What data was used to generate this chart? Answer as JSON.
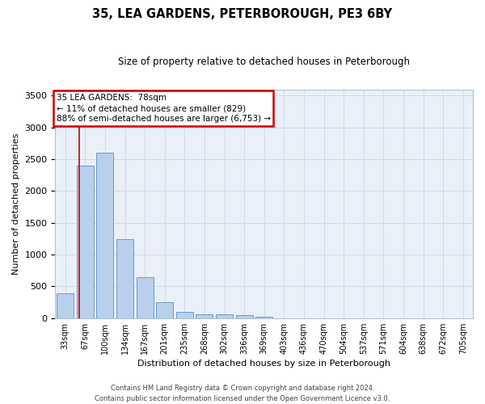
{
  "title": "35, LEA GARDENS, PETERBOROUGH, PE3 6BY",
  "subtitle": "Size of property relative to detached houses in Peterborough",
  "xlabel": "Distribution of detached houses by size in Peterborough",
  "ylabel": "Number of detached properties",
  "footer_line1": "Contains HM Land Registry data © Crown copyright and database right 2024.",
  "footer_line2": "Contains public sector information licensed under the Open Government Licence v3.0.",
  "categories": [
    "33sqm",
    "67sqm",
    "100sqm",
    "134sqm",
    "167sqm",
    "201sqm",
    "235sqm",
    "268sqm",
    "302sqm",
    "336sqm",
    "369sqm",
    "403sqm",
    "436sqm",
    "470sqm",
    "504sqm",
    "537sqm",
    "571sqm",
    "604sqm",
    "638sqm",
    "672sqm",
    "705sqm"
  ],
  "values": [
    390,
    2400,
    2600,
    1240,
    640,
    255,
    95,
    60,
    55,
    45,
    25,
    0,
    0,
    0,
    0,
    0,
    0,
    0,
    0,
    0,
    0
  ],
  "bar_color": "#b8d0eb",
  "bar_edge_color": "#5b8ec4",
  "grid_color": "#d0d8ea",
  "background_color": "#eaf0f8",
  "red_line_x": 0.72,
  "annotation_text": "35 LEA GARDENS:  78sqm\n← 11% of detached houses are smaller (829)\n88% of semi-detached houses are larger (6,753) →",
  "annotation_box_color": "#ffffff",
  "annotation_border_color": "#cc0000",
  "ylim": [
    0,
    3600
  ],
  "yticks": [
    0,
    500,
    1000,
    1500,
    2000,
    2500,
    3000,
    3500
  ],
  "figsize": [
    6.0,
    5.0
  ],
  "dpi": 100
}
